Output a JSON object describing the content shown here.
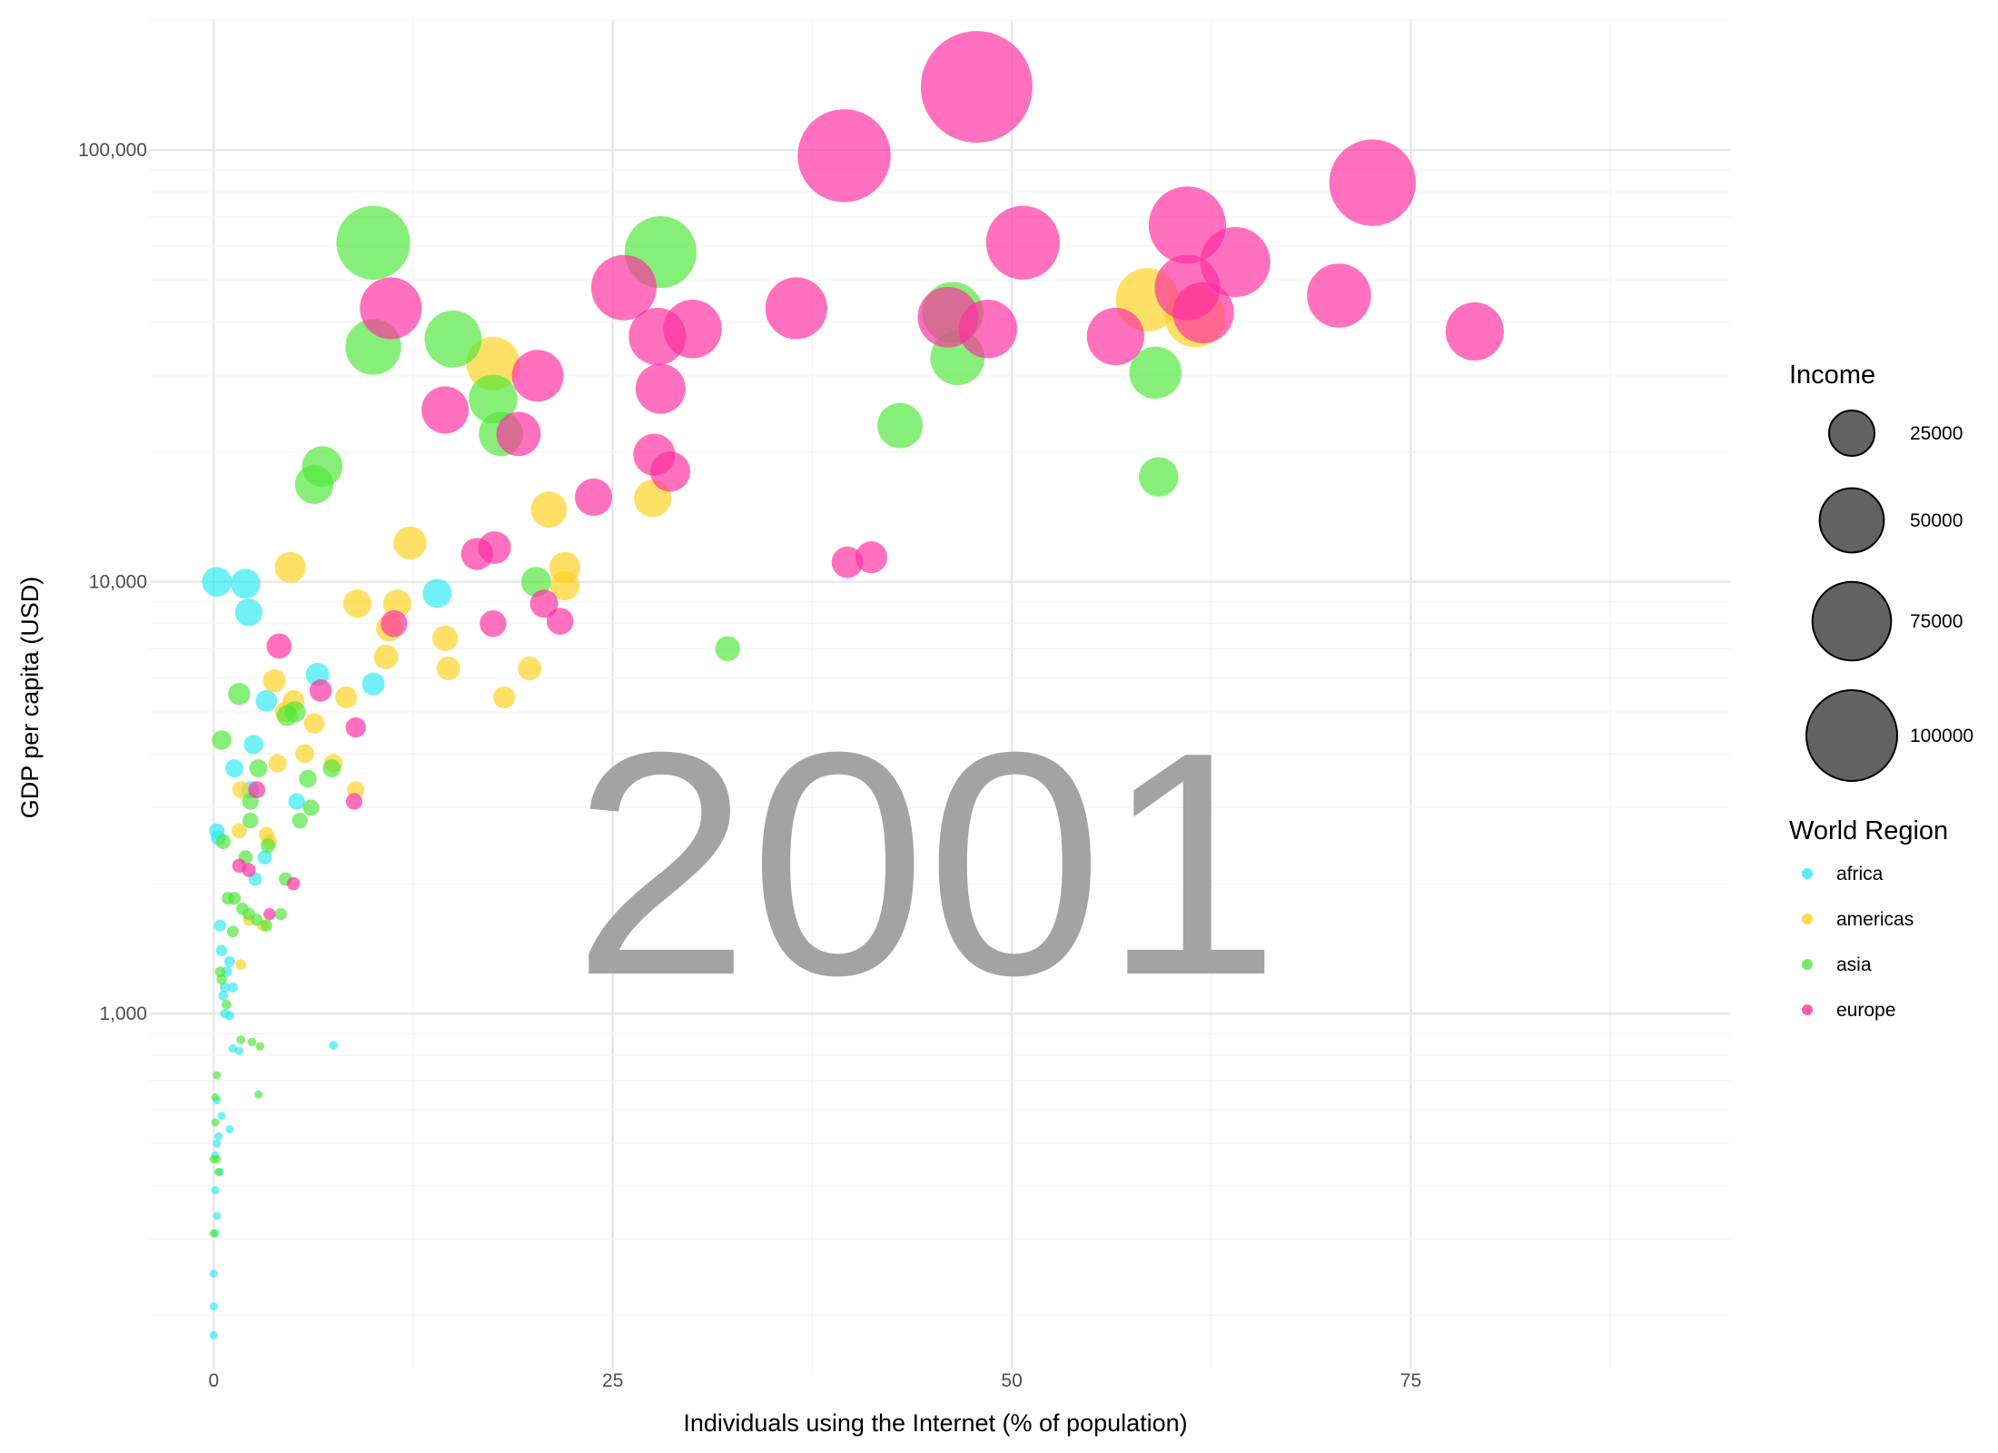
{
  "chart_data": {
    "type": "scatter",
    "title": "",
    "year_label": "2001",
    "xlabel": "Individuals using the Internet (% of population)",
    "ylabel": "GDP per capita (USD)",
    "x_scale": "linear",
    "y_scale": "log10",
    "xlim": [
      -4,
      95
    ],
    "ylim": [
      150,
      200000
    ],
    "x_ticks": [
      {
        "value": 0,
        "label": "0"
      },
      {
        "value": 25,
        "label": "25"
      },
      {
        "value": 50,
        "label": "50"
      },
      {
        "value": 75,
        "label": "75"
      }
    ],
    "y_ticks": [
      {
        "value": 1000,
        "label": "1,000"
      },
      {
        "value": 10000,
        "label": "10,000"
      },
      {
        "value": 100000,
        "label": "100,000"
      }
    ],
    "grid": true,
    "legend_position": "right",
    "size_legend": {
      "title": "Income",
      "entries": [
        {
          "value": 25000,
          "label": "25000"
        },
        {
          "value": 50000,
          "label": "50000"
        },
        {
          "value": 75000,
          "label": "75000"
        },
        {
          "value": 100000,
          "label": "100000"
        }
      ]
    },
    "color_legend": {
      "title": "World Region",
      "entries": [
        {
          "name": "africa",
          "color": "#2EEAF0"
        },
        {
          "name": "americas",
          "color": "#FFD21F"
        },
        {
          "name": "asia",
          "color": "#4EE83A"
        },
        {
          "name": "europe",
          "color": "#FF2EA0"
        }
      ]
    },
    "series": [
      {
        "name": "africa",
        "color": "#2EEAF0",
        "points": [
          [
            0.2,
            10000
          ],
          [
            2.0,
            9900
          ],
          [
            2.2,
            8500
          ],
          [
            14.0,
            9400
          ],
          [
            10.0,
            5800
          ],
          [
            6.5,
            6100
          ],
          [
            3.3,
            5300
          ],
          [
            2.5,
            4200
          ],
          [
            1.3,
            3700
          ],
          [
            5.2,
            3100
          ],
          [
            2.3,
            3300
          ],
          [
            3.2,
            2300
          ],
          [
            2.6,
            2050
          ],
          [
            0.2,
            2650
          ],
          [
            0.3,
            2550
          ],
          [
            0.4,
            1600
          ],
          [
            0.5,
            1400
          ],
          [
            1.0,
            1320
          ],
          [
            0.8,
            1250
          ],
          [
            0.7,
            1150
          ],
          [
            1.2,
            1150
          ],
          [
            0.6,
            1100
          ],
          [
            0.7,
            1000
          ],
          [
            1.0,
            990
          ],
          [
            1.2,
            830
          ],
          [
            1.6,
            820
          ],
          [
            7.5,
            845
          ],
          [
            0.2,
            630
          ],
          [
            0.5,
            580
          ],
          [
            1.0,
            540
          ],
          [
            0.3,
            520
          ],
          [
            0.2,
            500
          ],
          [
            0.1,
            470
          ],
          [
            0.4,
            430
          ],
          [
            0.1,
            390
          ],
          [
            0.2,
            340
          ],
          [
            0.1,
            310
          ],
          [
            0.0,
            250
          ],
          [
            0.0,
            210
          ],
          [
            0.0,
            180
          ]
        ]
      },
      {
        "name": "americas",
        "color": "#FFD21F",
        "points": [
          [
            58.5,
            45000
          ],
          [
            61.5,
            41000
          ],
          [
            17.5,
            32000
          ],
          [
            21.0,
            14700
          ],
          [
            27.5,
            15600
          ],
          [
            12.3,
            12300
          ],
          [
            22.0,
            10800
          ],
          [
            22.0,
            9800
          ],
          [
            4.8,
            10800
          ],
          [
            9.0,
            8900
          ],
          [
            11.5,
            8900
          ],
          [
            11.0,
            7800
          ],
          [
            10.8,
            6700
          ],
          [
            14.5,
            7400
          ],
          [
            14.7,
            6300
          ],
          [
            19.8,
            6300
          ],
          [
            18.2,
            5400
          ],
          [
            3.8,
            5900
          ],
          [
            8.3,
            5400
          ],
          [
            5.0,
            5300
          ],
          [
            4.5,
            5000
          ],
          [
            6.3,
            4700
          ],
          [
            5.7,
            4000
          ],
          [
            4.0,
            3800
          ],
          [
            7.5,
            3800
          ],
          [
            8.9,
            3300
          ],
          [
            1.7,
            3300
          ],
          [
            3.3,
            2600
          ],
          [
            1.6,
            2650
          ],
          [
            3.5,
            2500
          ],
          [
            1.7,
            1300
          ],
          [
            2.2,
            1650
          ],
          [
            3.1,
            1600
          ]
        ]
      },
      {
        "name": "asia",
        "color": "#4EE83A",
        "points": [
          [
            10.0,
            61000
          ],
          [
            28.0,
            58000
          ],
          [
            15.0,
            36500
          ],
          [
            10.0,
            35000
          ],
          [
            46.3,
            42000
          ],
          [
            46.6,
            33000
          ],
          [
            17.5,
            26500
          ],
          [
            18.0,
            22000
          ],
          [
            59.0,
            30500
          ],
          [
            43.0,
            23000
          ],
          [
            6.8,
            18500
          ],
          [
            6.3,
            16800
          ],
          [
            59.2,
            17500
          ],
          [
            20.2,
            10000
          ],
          [
            32.2,
            7000
          ],
          [
            1.6,
            5500
          ],
          [
            5.1,
            5000
          ],
          [
            4.6,
            4900
          ],
          [
            5.9,
            3500
          ],
          [
            7.4,
            3700
          ],
          [
            6.1,
            3000
          ],
          [
            2.8,
            3700
          ],
          [
            2.3,
            3100
          ],
          [
            0.5,
            4300
          ],
          [
            5.4,
            2800
          ],
          [
            2.3,
            2800
          ],
          [
            0.6,
            2500
          ],
          [
            3.4,
            2450
          ],
          [
            2.0,
            2300
          ],
          [
            4.5,
            2050
          ],
          [
            0.9,
            1850
          ],
          [
            1.3,
            1850
          ],
          [
            1.8,
            1750
          ],
          [
            2.2,
            1700
          ],
          [
            2.7,
            1650
          ],
          [
            4.2,
            1700
          ],
          [
            1.2,
            1550
          ],
          [
            3.3,
            1600
          ],
          [
            0.4,
            1250
          ],
          [
            0.5,
            1200
          ],
          [
            0.8,
            1050
          ],
          [
            1.7,
            870
          ],
          [
            2.4,
            860
          ],
          [
            2.9,
            840
          ],
          [
            2.8,
            650
          ],
          [
            0.2,
            720
          ],
          [
            0.1,
            640
          ],
          [
            0.1,
            560
          ],
          [
            0.0,
            460
          ],
          [
            0.2,
            460
          ],
          [
            0.3,
            430
          ],
          [
            0.0,
            310
          ]
        ]
      },
      {
        "name": "europe",
        "color": "#FF2EA0",
        "points": [
          [
            47.8,
            140000
          ],
          [
            39.5,
            97000
          ],
          [
            72.6,
            84000
          ],
          [
            50.7,
            61000
          ],
          [
            61.0,
            67000
          ],
          [
            64.0,
            55000
          ],
          [
            25.7,
            48000
          ],
          [
            36.5,
            43000
          ],
          [
            61.0,
            48000
          ],
          [
            62.0,
            42000
          ],
          [
            70.5,
            46000
          ],
          [
            79.0,
            38000
          ],
          [
            11.1,
            43000
          ],
          [
            30.0,
            38500
          ],
          [
            27.8,
            37000
          ],
          [
            46.0,
            41000
          ],
          [
            48.5,
            38500
          ],
          [
            56.5,
            37000
          ],
          [
            20.3,
            30000
          ],
          [
            14.5,
            25000
          ],
          [
            28.0,
            28000
          ],
          [
            19.1,
            22000
          ],
          [
            27.6,
            19700
          ],
          [
            28.6,
            18000
          ],
          [
            23.8,
            15700
          ],
          [
            16.5,
            11600
          ],
          [
            17.6,
            12000
          ],
          [
            39.7,
            11100
          ],
          [
            41.2,
            11400
          ],
          [
            11.3,
            8000
          ],
          [
            17.5,
            8000
          ],
          [
            20.7,
            8900
          ],
          [
            21.7,
            8100
          ],
          [
            4.1,
            7100
          ],
          [
            6.7,
            5600
          ],
          [
            8.9,
            4600
          ],
          [
            8.8,
            3100
          ],
          [
            2.7,
            3300
          ],
          [
            1.6,
            2200
          ],
          [
            2.2,
            2150
          ],
          [
            3.5,
            1700
          ],
          [
            5.0,
            2000
          ]
        ]
      }
    ]
  }
}
